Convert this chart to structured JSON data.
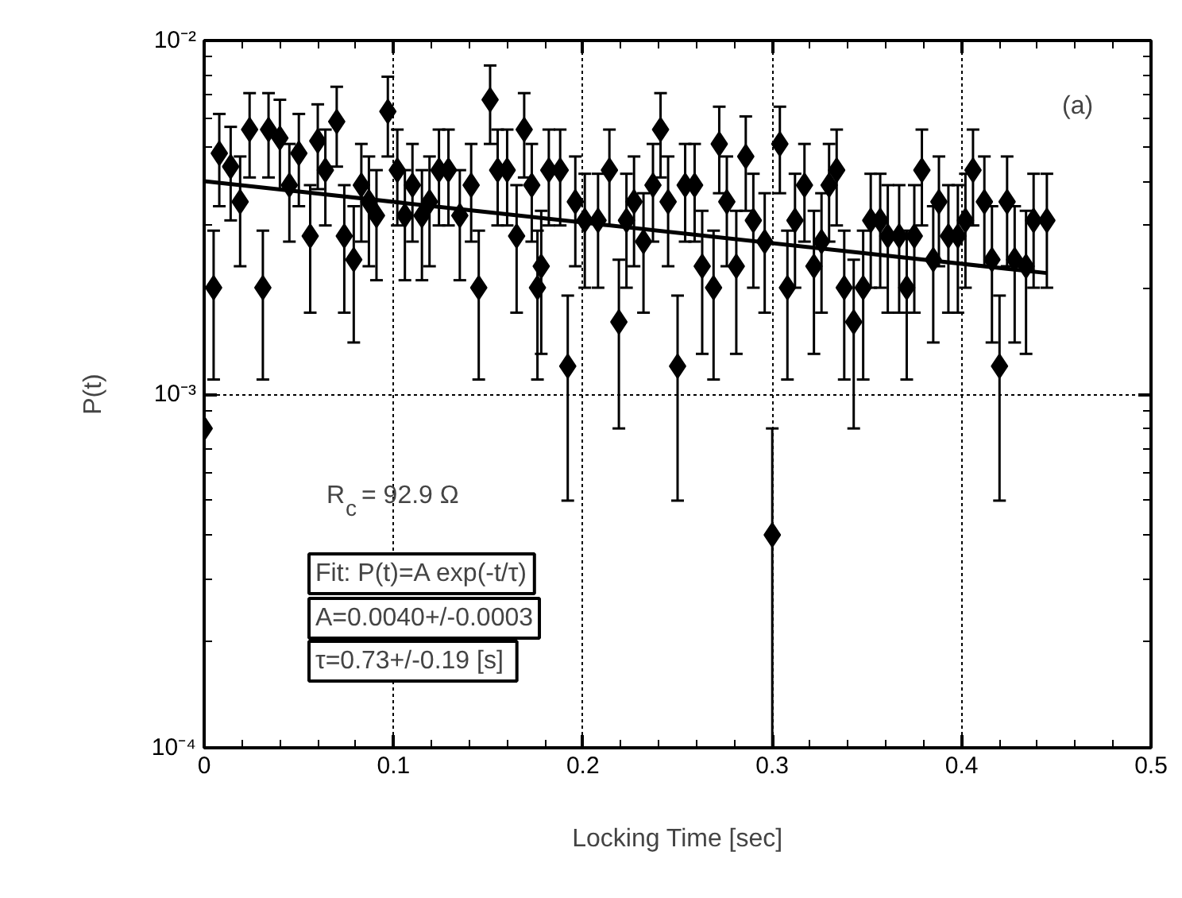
{
  "chart_data": {
    "type": "scatter",
    "xlabel": "Locking Time [sec]",
    "ylabel": "P(t)",
    "xlim": [
      0,
      0.5
    ],
    "xticks": [
      0,
      0.1,
      0.2,
      0.3,
      0.4,
      0.5
    ],
    "ylim": [
      0.0001,
      0.01
    ],
    "yticks": [
      {
        "value": 0.0001,
        "label": "10⁻⁴"
      },
      {
        "value": 0.001,
        "label": "10⁻³"
      },
      {
        "value": 0.01,
        "label": "10⁻²"
      }
    ],
    "log": "y",
    "grid": true,
    "marker": "diamond",
    "annotations": [
      "(a)",
      "R$_{c}$ = 92.9 Ω",
      "Fit: P(t)=A exp(-t/τ)",
      "A=0.0040+/-0.0003",
      "τ=0.73+/-0.19  [s]"
    ],
    "series": [
      {
        "color": "#000000",
        "x": [
          0,
          0.005,
          0.008,
          0.014,
          0.019,
          0.024,
          0.031,
          0.034,
          0.04,
          0.045,
          0.05,
          0.056,
          0.06,
          0.064,
          0.07,
          0.074,
          0.079,
          0.083,
          0.087,
          0.091,
          0.097,
          0.102,
          0.106,
          0.11,
          0.115,
          0.119,
          0.124,
          0.129,
          0.135,
          0.141,
          0.145,
          0.151,
          0.155,
          0.16,
          0.165,
          0.169,
          0.173,
          0.176,
          0.178,
          0.182,
          0.188,
          0.192,
          0.196,
          0.201,
          0.208,
          0.214,
          0.219,
          0.223,
          0.227,
          0.232,
          0.237,
          0.241,
          0.245,
          0.25,
          0.254,
          0.259,
          0.263,
          0.269,
          0.272,
          0.276,
          0.281,
          0.286,
          0.29,
          0.296,
          0.3,
          0.304,
          0.308,
          0.312,
          0.317,
          0.322,
          0.326,
          0.33,
          0.334,
          0.338,
          0.343,
          0.348,
          0.352,
          0.357,
          0.361,
          0.367,
          0.371,
          0.375,
          0.379,
          0.385,
          0.388,
          0.393,
          0.398,
          0.402,
          0.406,
          0.412,
          0.416,
          0.42,
          0.424,
          0.428,
          0.434,
          0.438,
          0.445
        ],
        "values": [
          0.0008,
          0.002,
          0.0048,
          0.0044,
          0.0035,
          0.0056,
          0.002,
          0.0056,
          0.0053,
          0.0039,
          0.0048,
          0.0028,
          0.0052,
          0.0043,
          0.0059,
          0.0028,
          0.0024,
          0.0039,
          0.0035,
          0.0032,
          0.0063,
          0.0043,
          0.0032,
          0.0039,
          0.0032,
          0.0035,
          0.0043,
          0.0043,
          0.0032,
          0.0039,
          0.002,
          0.0068,
          0.0043,
          0.0043,
          0.0028,
          0.0056,
          0.0039,
          0.002,
          0.0023,
          0.0043,
          0.0043,
          0.0012,
          0.0035,
          0.0031,
          0.0031,
          0.0043,
          0.0016,
          0.0031,
          0.0035,
          0.0027,
          0.0039,
          0.0056,
          0.0035,
          0.0012,
          0.0039,
          0.0039,
          0.0023,
          0.002,
          0.0051,
          0.0035,
          0.0023,
          0.0047,
          0.0031,
          0.0027,
          0.0004,
          0.0051,
          0.002,
          0.0031,
          0.0039,
          0.0023,
          0.0027,
          0.0039,
          0.0043,
          0.002,
          0.0016,
          0.002,
          0.0031,
          0.0031,
          0.0028,
          0.0028,
          0.002,
          0.0028,
          0.0043,
          0.0024,
          0.0035,
          0.0028,
          0.0028,
          0.0031,
          0.0043,
          0.0035,
          0.0024,
          0.0012,
          0.0035,
          0.0024,
          0.0023,
          0.0031,
          0.0031
        ],
        "errors": [
          null,
          0.0009,
          0.0014,
          0.0013,
          0.0012,
          0.0015,
          0.0009,
          0.0015,
          0.0015,
          0.0012,
          0.0014,
          0.0011,
          0.0014,
          0.0013,
          0.0015,
          0.0011,
          0.001,
          0.0012,
          0.0012,
          0.0011,
          0.0016,
          0.0013,
          0.0011,
          0.0012,
          0.0011,
          0.0012,
          0.0013,
          0.0013,
          0.0011,
          0.0012,
          0.0009,
          0.0017,
          0.0013,
          0.0013,
          0.0011,
          0.0015,
          0.0012,
          0.0009,
          0.001,
          0.0013,
          0.0013,
          0.0007,
          0.0012,
          0.0011,
          0.0011,
          0.0013,
          0.0008,
          0.0011,
          0.0012,
          0.001,
          0.0012,
          0.0015,
          0.0012,
          0.0007,
          0.0012,
          0.0012,
          0.001,
          0.0009,
          0.0014,
          0.0012,
          0.001,
          0.0014,
          0.0011,
          0.001,
          [
            0.0001,
            0.0008
          ],
          0.0014,
          0.0009,
          0.0011,
          0.0012,
          0.001,
          0.001,
          0.0012,
          0.0013,
          0.0009,
          0.0008,
          0.0009,
          0.0011,
          0.0011,
          0.0011,
          0.0011,
          0.0009,
          0.0011,
          0.0013,
          0.001,
          0.0012,
          0.0011,
          0.0011,
          0.0011,
          0.0013,
          0.0012,
          0.001,
          0.0007,
          0.0012,
          0.001,
          0.001,
          0.0011,
          0.0011
        ]
      },
      {
        "type": "line",
        "marker": "none",
        "color": "#000000",
        "x": [
          0,
          0.445
        ],
        "values": [
          0.004,
          0.0022
        ]
      }
    ]
  }
}
